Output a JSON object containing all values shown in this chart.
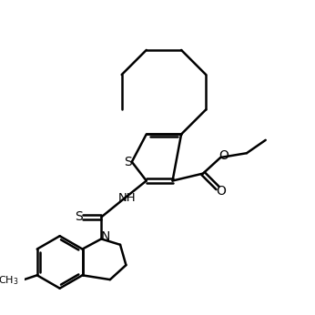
{
  "background": "#ffffff",
  "line_color": "#000000",
  "line_width": 1.8,
  "figure_size": [
    3.46,
    3.46
  ],
  "dpi": 100,
  "xlim": [
    0,
    10
  ],
  "ylim": [
    0,
    10
  ]
}
